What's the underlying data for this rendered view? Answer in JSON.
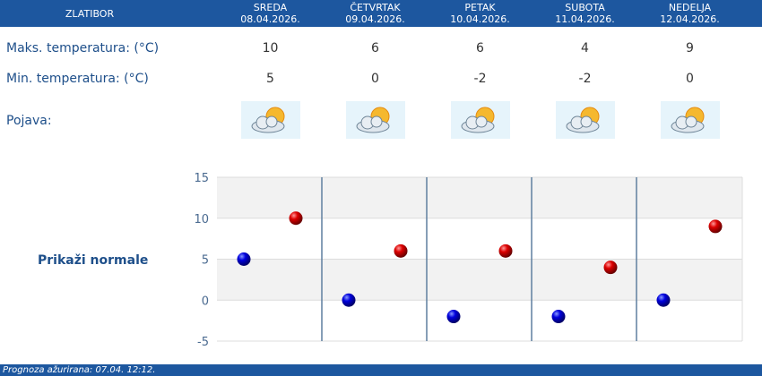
{
  "header": {
    "location": "ZLATIBOR",
    "days": [
      {
        "name": "SREDA",
        "date": "08.04.2026."
      },
      {
        "name": "ČETVRTAK",
        "date": "09.04.2026."
      },
      {
        "name": "PETAK",
        "date": "10.04.2026."
      },
      {
        "name": "SUBOTA",
        "date": "11.04.2026."
      },
      {
        "name": "NEDELJA",
        "date": "12.04.2026."
      }
    ]
  },
  "rows": {
    "max_label": "Maks. temperatura: (°C)",
    "min_label": "Min. temperatura: (°C)",
    "phenomenon_label": "Pojava:",
    "max": [
      "10",
      "6",
      "6",
      "4",
      "9"
    ],
    "min": [
      "5",
      "0",
      "-2",
      "-2",
      "0"
    ],
    "icons": [
      "partly-cloudy-icon",
      "cloudy-sun-icon",
      "cloudy-sun-icon",
      "partly-cloudy-icon",
      "sunny-cloud-icon"
    ]
  },
  "normals_link": "Prikaži normale",
  "chart_data": {
    "type": "scatter",
    "categories": [
      "08.04.2026.",
      "09.04.2026.",
      "10.04.2026.",
      "11.04.2026.",
      "12.04.2026."
    ],
    "series": [
      {
        "values": [
          5,
          0,
          -2,
          -2,
          0
        ],
        "color": "#0000cc"
      },
      {
        "values": [
          10,
          6,
          6,
          4,
          9
        ],
        "color": "#cc0000"
      }
    ],
    "ylim": [
      -5,
      15
    ],
    "yticks": [
      "15",
      "10",
      "5",
      "0",
      "-5"
    ],
    "grid": true
  },
  "footer": "Prognoza ažurirana:  07.04. 12:12."
}
